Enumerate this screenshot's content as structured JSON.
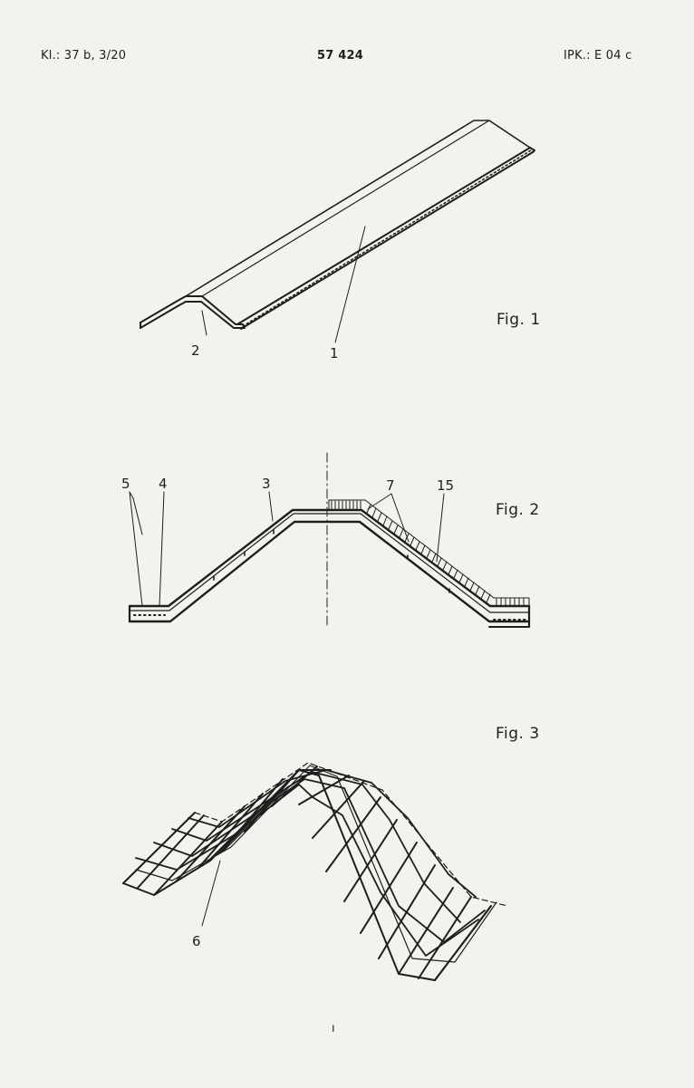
{
  "header": {
    "classification": "Kl.: 37 b, 3/20",
    "patent_number": "57 424",
    "ipc": "IPK.: E 04 c"
  },
  "figures": {
    "fig1": {
      "label": "Fig. 1",
      "refs": {
        "r1": "1",
        "r2": "2"
      }
    },
    "fig2": {
      "label": "Fig. 2",
      "refs": {
        "r3": "3",
        "r4": "4",
        "r5": "5",
        "r7": "7",
        "r15": "15"
      }
    },
    "fig3": {
      "label": "Fig. 3",
      "refs": {
        "r6": "6"
      }
    }
  },
  "footer": {
    "page_mark": "ı"
  }
}
